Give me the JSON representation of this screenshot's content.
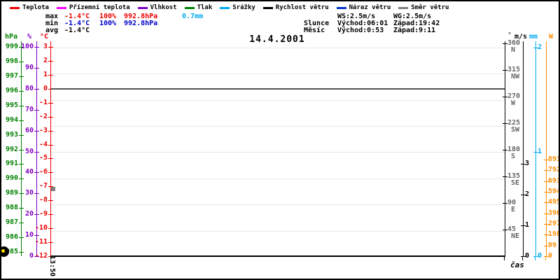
{
  "title": "14.4.2001",
  "colors": {
    "temperature": "#ee0000",
    "ground_temperature": "#ff00ff",
    "humidity": "#8000c0",
    "pressure": "#008000",
    "rain": "#00aaee",
    "wind_speed": "#000000",
    "wind_gust": "#0033cc",
    "wind_direction": "#808080",
    "wind_direction_labels": "#666666",
    "radiation": "#ff8c00",
    "min_values": "#0000cc",
    "max_values": "#ee0000",
    "moon_lit": "#ffdd00",
    "gridline": "#e8e8e8",
    "zero_line": "#555555"
  },
  "legend": {
    "items": [
      {
        "label": "Teplota",
        "color": "#ee0000"
      },
      {
        "label": "Přízemní teplota",
        "color": "#ff00ff"
      },
      {
        "label": "Vlhkost",
        "color": "#8000c0"
      },
      {
        "label": "Tlak",
        "color": "#008000"
      },
      {
        "label": "Srážky",
        "color": "#00aaee"
      },
      {
        "label": "Rychlost větru",
        "color": "#000000"
      },
      {
        "label": "Náraz větru",
        "color": "#0033cc"
      },
      {
        "label": "Směr větru",
        "color": "#808080"
      }
    ]
  },
  "stats": {
    "max": {
      "label": "max",
      "temp": "-1.4°C",
      "humidity": "100%",
      "pressure": "992.8hPa",
      "rain": "0.7mm"
    },
    "min": {
      "label": "min",
      "temp": "-1.4°C",
      "humidity": "100%",
      "pressure": "992.8hPa"
    },
    "avg": {
      "label": "avg",
      "temp": "-1.4°C"
    }
  },
  "astro": {
    "ws": "WS:2.5m/s",
    "wg": "WG:2.5m/s",
    "sun_label": "Slunce",
    "sun_rise": "Východ:06:01",
    "sun_set": "Západ:19:42",
    "moon_label": "Měsíc",
    "moon_rise": "Východ:0:53",
    "moon_set": "Západ:9:11"
  },
  "axes": {
    "pressure": {
      "label": "hPa",
      "ticks": [
        "999",
        "998",
        "997",
        "996",
        "995",
        "994",
        "993",
        "992",
        "991",
        "990",
        "989",
        "988",
        "987",
        "986",
        "985"
      ]
    },
    "humidity": {
      "label": "%",
      "ticks": [
        "100",
        "90",
        "80",
        "70",
        "60",
        "50",
        "40",
        "30",
        "20",
        "10",
        "0"
      ]
    },
    "temperature": {
      "label": "°C",
      "ticks": [
        "3",
        "2",
        "1",
        "0",
        "-1",
        "-2",
        "-3",
        "-4",
        "-5",
        "-6",
        "-7",
        "-8",
        "-9",
        "-10",
        "-11",
        "-12"
      ]
    },
    "wind_direction": {
      "label": "°",
      "ticks": [
        {
          "deg": "360",
          "dir": "N"
        },
        {
          "deg": "315",
          "dir": "NW"
        },
        {
          "deg": "270",
          "dir": "W"
        },
        {
          "deg": "225",
          "dir": "SW"
        },
        {
          "deg": "180",
          "dir": "S"
        },
        {
          "deg": "135",
          "dir": "SE"
        },
        {
          "deg": "90",
          "dir": "E"
        },
        {
          "deg": "45",
          "dir": "NE"
        }
      ]
    },
    "wind_speed": {
      "label": "m/s",
      "ticks": [
        "3",
        "2",
        "1",
        "0"
      ]
    },
    "rain": {
      "label": "mm",
      "ticks": [
        "2",
        "1",
        "0"
      ]
    },
    "radiation": {
      "label": "W",
      "ticks": [
        "891",
        "792",
        "693",
        "594",
        "495",
        "396",
        "297",
        "198",
        "99",
        "0"
      ]
    }
  },
  "xaxis": {
    "first_tick": "13:50",
    "axis_label": "čas"
  },
  "chart_data": {
    "type": "line",
    "title": "14.4.2001",
    "x": [
      "13:50"
    ],
    "series": [
      {
        "name": "Teplota",
        "unit": "°C",
        "color": "#ee0000",
        "values": [
          -1.4
        ]
      },
      {
        "name": "Přízemní teplota",
        "unit": "°C",
        "color": "#ff00ff",
        "values": []
      },
      {
        "name": "Vlhkost",
        "unit": "%",
        "color": "#8000c0",
        "values": [
          100
        ]
      },
      {
        "name": "Tlak",
        "unit": "hPa",
        "color": "#008000",
        "values": [
          992.8
        ]
      },
      {
        "name": "Srážky",
        "unit": "mm",
        "color": "#00aaee",
        "values": [
          0.7
        ]
      },
      {
        "name": "Rychlost větru",
        "unit": "m/s",
        "color": "#000000",
        "values": [
          2.5
        ]
      },
      {
        "name": "Náraz větru",
        "unit": "m/s",
        "color": "#0033cc",
        "values": [
          2.5
        ]
      },
      {
        "name": "Směr větru",
        "unit": "°",
        "color": "#808080",
        "values": [
          114
        ]
      }
    ],
    "y_axes": [
      {
        "name": "pressure",
        "unit": "hPa",
        "min": 985,
        "max": 999
      },
      {
        "name": "humidity",
        "unit": "%",
        "min": 0,
        "max": 100
      },
      {
        "name": "temperature",
        "unit": "°C",
        "min": -12,
        "max": 3
      },
      {
        "name": "wind_direction",
        "unit": "°",
        "min": 0,
        "max": 360
      },
      {
        "name": "wind_speed",
        "unit": "m/s",
        "min": 0,
        "max": 3
      },
      {
        "name": "rain",
        "unit": "mm",
        "min": 0,
        "max": 2
      },
      {
        "name": "radiation",
        "unit": "W",
        "min": 0,
        "max": 891
      }
    ],
    "grid": true,
    "legend_position": "top",
    "annotations": [
      "zero °C line across plot",
      "gray wind-direction sample at 13:50 ≈114°",
      "moon phase glyph lower-left"
    ]
  }
}
